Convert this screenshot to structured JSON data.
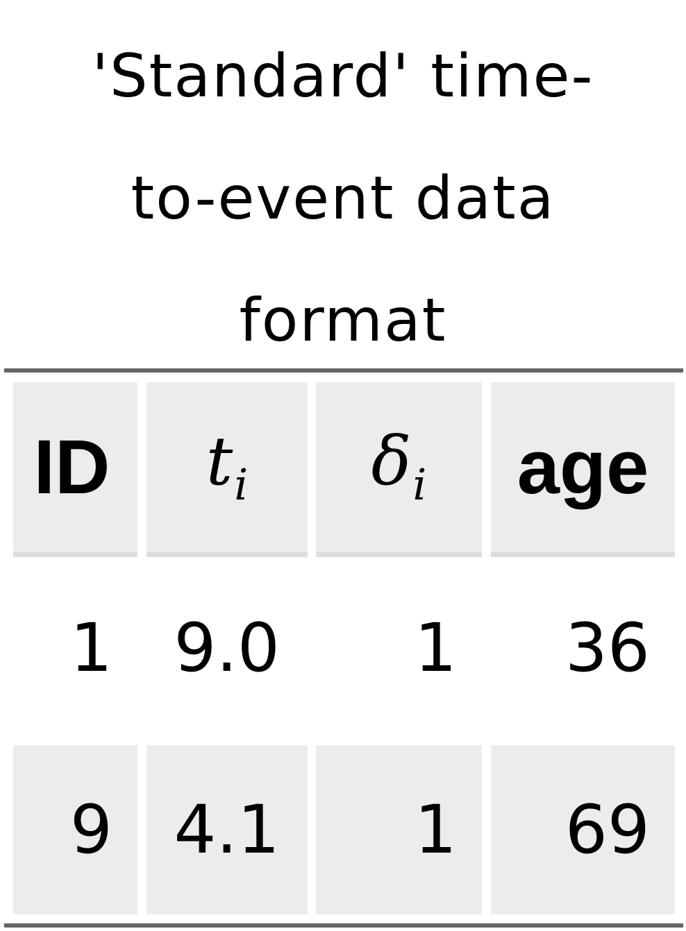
{
  "title_lines": [
    "'Standard' time-",
    "to-event data",
    "format"
  ],
  "table": {
    "headers": [
      {
        "type": "text",
        "label": "ID"
      },
      {
        "type": "math",
        "base": "t",
        "sub": "i"
      },
      {
        "type": "math",
        "base": "δ",
        "sub": "i"
      },
      {
        "type": "text",
        "label": "age"
      }
    ],
    "rows": [
      {
        "id": "1",
        "t": "9.0",
        "delta": "1",
        "age": "36"
      },
      {
        "id": "9",
        "t": "4.1",
        "delta": "1",
        "age": "69"
      }
    ]
  },
  "colors": {
    "rule": "#666666",
    "shade": "#ececec",
    "header_underline": "#dcdcdc"
  }
}
